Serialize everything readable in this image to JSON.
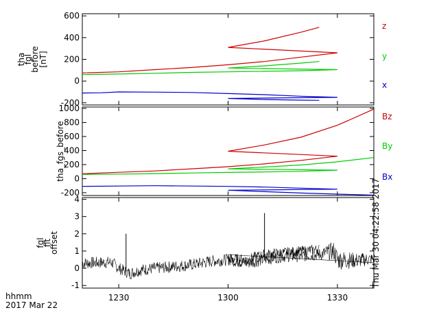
{
  "colors": {
    "red": "#cc0000",
    "green": "#00cc00",
    "blue": "#0000cc",
    "black": "#000000"
  },
  "footer": {
    "time_unit": "hhmm",
    "date": "2017 Mar 22"
  },
  "timestamp_vertical": "Thu Mar 30 04:22:58 2017",
  "chart_data": [
    {
      "type": "line",
      "ylabel_lines": [
        "tha",
        "fgl",
        "before",
        "[nT]"
      ],
      "ylim": [
        -220,
        620
      ],
      "yticks": [
        -200,
        0,
        200,
        400,
        600
      ],
      "xlim": [
        1220,
        1340
      ],
      "xticks": [
        1230,
        1300,
        1330
      ],
      "tick_minutes": [
        1230,
        1260,
        1290
      ],
      "xtick_labels": [],
      "series": [
        {
          "name": "z",
          "color": "#cc0000",
          "x": [
            1220,
            1230,
            1240,
            1250,
            1260,
            1270,
            1280,
            1290,
            1300,
            1310,
            1320,
            1325
          ],
          "values": [
            75,
            85,
            105,
            125,
            150,
            180,
            220,
            260,
            310,
            370,
            450,
            495
          ]
        },
        {
          "name": "y",
          "color": "#00cc00",
          "x": [
            1220,
            1230,
            1240,
            1250,
            1260,
            1270,
            1280,
            1290,
            1300,
            1310,
            1320,
            1325
          ],
          "values": [
            60,
            65,
            72,
            80,
            85,
            90,
            95,
            105,
            120,
            140,
            165,
            180
          ]
        },
        {
          "name": "x",
          "color": "#0000cc",
          "x": [
            1220,
            1225,
            1230,
            1240,
            1250,
            1260,
            1270,
            1280,
            1290,
            1300,
            1310,
            1320,
            1325
          ],
          "values": [
            -110,
            -108,
            -100,
            -102,
            -105,
            -115,
            -125,
            -140,
            -150,
            -160,
            -170,
            -176,
            -178
          ]
        }
      ]
    },
    {
      "type": "line",
      "ylabel_lines": [
        "tha_fgs_before"
      ],
      "ylim": [
        -240,
        1020
      ],
      "yticks": [
        -200,
        0,
        200,
        400,
        600,
        800,
        1000
      ],
      "xlim": [
        1220,
        1340
      ],
      "xticks": [
        1230,
        1300,
        1330
      ],
      "tick_minutes": [
        1230,
        1260,
        1290
      ],
      "xtick_labels": [],
      "series": [
        {
          "name": "Bz",
          "color": "#cc0000",
          "x": [
            1220,
            1230,
            1240,
            1250,
            1260,
            1270,
            1280,
            1290,
            1300,
            1310,
            1320,
            1330,
            1340
          ],
          "values": [
            70,
            90,
            110,
            140,
            170,
            210,
            260,
            320,
            390,
            480,
            590,
            760,
            990
          ]
        },
        {
          "name": "By",
          "color": "#00cc00",
          "x": [
            1220,
            1230,
            1240,
            1250,
            1260,
            1270,
            1280,
            1290,
            1300,
            1310,
            1320,
            1330,
            1340
          ],
          "values": [
            60,
            65,
            72,
            80,
            88,
            95,
            105,
            120,
            140,
            165,
            195,
            240,
            300
          ]
        },
        {
          "name": "Bx",
          "color": "#0000cc",
          "x": [
            1220,
            1230,
            1240,
            1250,
            1260,
            1270,
            1280,
            1290,
            1300,
            1310,
            1320,
            1330,
            1340
          ],
          "values": [
            -110,
            -105,
            -100,
            -105,
            -110,
            -120,
            -135,
            -150,
            -165,
            -185,
            -205,
            -220,
            -235
          ]
        }
      ]
    },
    {
      "type": "line",
      "ylabel_lines": [
        "fgl",
        "fit",
        "offset"
      ],
      "ylim": [
        -1.15,
        4.1
      ],
      "yticks": [
        -1,
        0,
        1,
        2,
        3,
        4
      ],
      "xlim": [
        1220,
        1340
      ],
      "xticks": [
        1230,
        1300,
        1330
      ],
      "tick_minutes": [
        1230,
        1260,
        1290
      ],
      "xtick_labels": [
        "1230",
        "1300",
        "1330"
      ],
      "series": [
        {
          "color": "#000000",
          "x": [
            1220,
            1228,
            1230,
            1233,
            1236,
            1240,
            1250,
            1255,
            1260,
            1265,
            1270,
            1275,
            1280,
            1285,
            1289,
            1290,
            1295,
            1300,
            1305,
            1308,
            1310,
            1315,
            1320,
            1325
          ],
          "values": [
            0.3,
            0.35,
            0.0,
            -0.3,
            -0.1,
            0.0,
            0.2,
            0.4,
            0.5,
            0.3,
            0.5,
            0.7,
            0.7,
            0.8,
            1.0,
            0.5,
            0.45,
            0.55,
            0.5,
            0.7,
            0.8,
            0.9,
            1.0,
            1.1
          ],
          "spread": [
            0.35,
            0.35,
            0.35,
            0.35,
            0.35,
            0.35,
            0.35,
            0.35,
            0.35,
            0.35,
            0.35,
            0.35,
            0.35,
            0.35,
            0.55,
            0.6,
            0.45,
            0.35,
            0.3,
            0.3,
            0.3,
            0.3,
            0.3,
            0.3
          ],
          "spikes": [
            {
              "x": 1232,
              "y": 2.0
            },
            {
              "x": 1270,
              "y": 3.2
            }
          ]
        }
      ]
    }
  ],
  "series_labels": [
    {
      "text": "z",
      "color": "#cc0000"
    },
    {
      "text": "y",
      "color": "#00cc00"
    },
    {
      "text": "x",
      "color": "#0000cc"
    },
    {
      "text": "Bz",
      "color": "#cc0000"
    },
    {
      "text": "By",
      "color": "#00cc00"
    },
    {
      "text": "Bx",
      "color": "#0000cc"
    }
  ]
}
